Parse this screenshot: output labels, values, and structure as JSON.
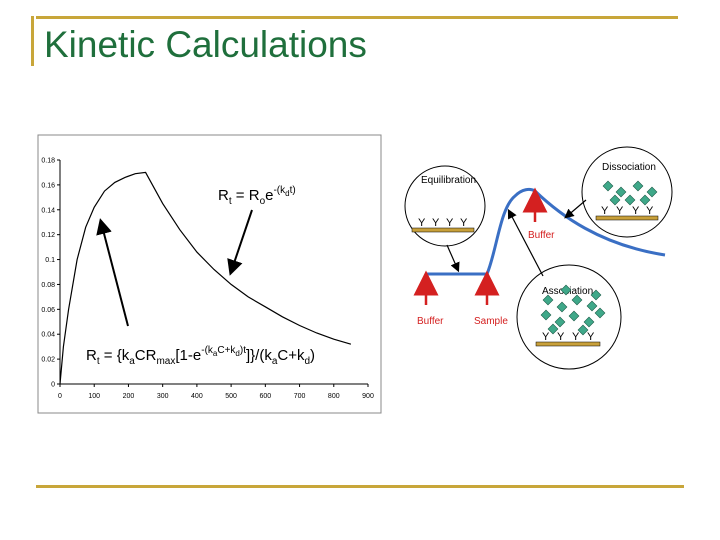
{
  "slide": {
    "title": "Kinetic Calculations",
    "accent_color": "#c8a63a",
    "title_color": "#1f6f3c"
  },
  "chart_data": {
    "type": "line",
    "xlim": [
      0,
      900
    ],
    "ylim": [
      0,
      0.18
    ],
    "x_ticks": [
      0,
      100,
      200,
      300,
      400,
      500,
      600,
      700,
      800,
      900
    ],
    "y_ticks": [
      0,
      0.02,
      0.04,
      0.06,
      0.08,
      0.1,
      0.12,
      0.14,
      0.16,
      0.18
    ],
    "y_tick_labels": [
      "0",
      "0.02",
      "0.04",
      "0.06",
      "0.08",
      "0.1",
      "0.12",
      "0.14",
      "0.16",
      "0.18"
    ],
    "grid": false,
    "series": [
      {
        "x": [
          0,
          10,
          25,
          50,
          75,
          100,
          130,
          160,
          190,
          220,
          250,
          300,
          350,
          400,
          450,
          500,
          550,
          600,
          650,
          700,
          750,
          800,
          850
        ],
        "y": [
          0,
          0.03,
          0.06,
          0.1,
          0.126,
          0.142,
          0.155,
          0.162,
          0.166,
          0.169,
          0.17,
          0.145,
          0.124,
          0.106,
          0.092,
          0.08,
          0.07,
          0.062,
          0.054,
          0.047,
          0.041,
          0.036,
          0.032
        ]
      }
    ],
    "annotations": {
      "dissociation_equation": "Rt = Roe-(kdt)",
      "association_equation": "Rt = {kaCRmax[1-e-(kaC+kd)t]}/(kaC+kd)"
    }
  },
  "diagram": {
    "line_color": "#3a6fc4",
    "arrow_color": "#d42020",
    "bead_color": "#3fa889",
    "labels": {
      "equilibration": "Equilibration",
      "dissociation": "Dissociation",
      "association": "Association",
      "buffer_left": "Buffer",
      "sample": "Sample",
      "buffer_right": "Buffer"
    }
  }
}
